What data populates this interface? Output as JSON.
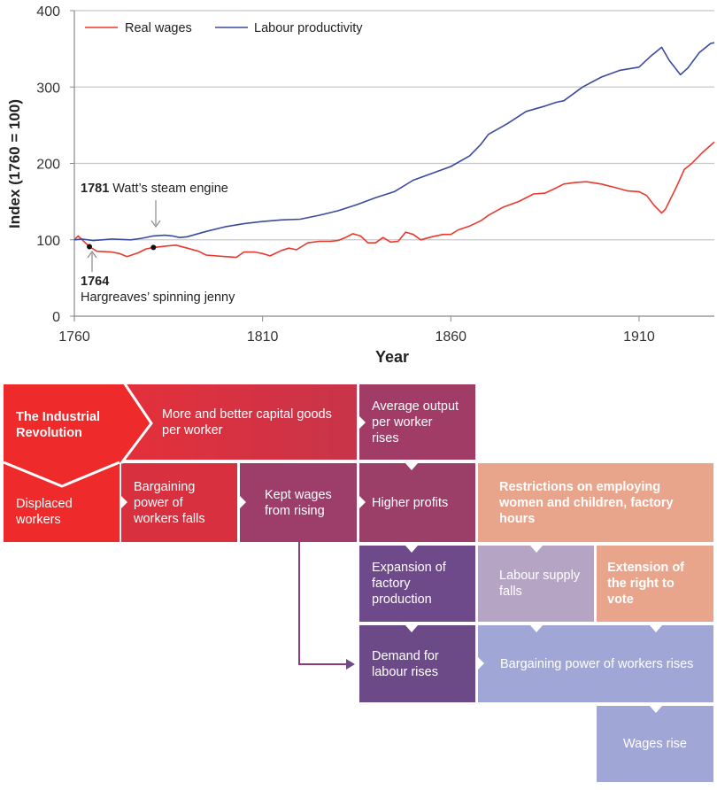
{
  "chart_data": {
    "type": "line",
    "xlabel": "Year",
    "ylabel": "Index (1760 = 100)",
    "xlim": [
      1760,
      1930
    ],
    "ylim": [
      0,
      400
    ],
    "xticks": [
      "1760",
      "1810",
      "1860",
      "1910"
    ],
    "yticks": [
      "0",
      "100",
      "200",
      "300",
      "400"
    ],
    "grid": "horizontal",
    "legend_placement": "top-left",
    "series": [
      {
        "name": "Real wages",
        "color": "#e8392d",
        "points": [
          [
            1760,
            100
          ],
          [
            1761,
            105
          ],
          [
            1764,
            91
          ],
          [
            1766,
            85
          ],
          [
            1770,
            84
          ],
          [
            1772,
            82
          ],
          [
            1774,
            78
          ],
          [
            1777,
            83
          ],
          [
            1779,
            88
          ],
          [
            1781,
            90
          ],
          [
            1785,
            92
          ],
          [
            1787,
            93
          ],
          [
            1790,
            89
          ],
          [
            1793,
            85
          ],
          [
            1795,
            80
          ],
          [
            1800,
            78
          ],
          [
            1803,
            77
          ],
          [
            1805,
            84
          ],
          [
            1808,
            84
          ],
          [
            1810,
            82
          ],
          [
            1812,
            79
          ],
          [
            1815,
            86
          ],
          [
            1817,
            89
          ],
          [
            1819,
            87
          ],
          [
            1822,
            96
          ],
          [
            1825,
            98
          ],
          [
            1828,
            98
          ],
          [
            1830,
            99
          ],
          [
            1832,
            103
          ],
          [
            1834,
            108
          ],
          [
            1836,
            105
          ],
          [
            1838,
            96
          ],
          [
            1840,
            96
          ],
          [
            1842,
            103
          ],
          [
            1844,
            97
          ],
          [
            1846,
            98
          ],
          [
            1848,
            110
          ],
          [
            1850,
            107
          ],
          [
            1852,
            100
          ],
          [
            1855,
            104
          ],
          [
            1858,
            107
          ],
          [
            1860,
            107
          ],
          [
            1862,
            113
          ],
          [
            1865,
            118
          ],
          [
            1868,
            125
          ],
          [
            1870,
            132
          ],
          [
            1874,
            143
          ],
          [
            1878,
            150
          ],
          [
            1882,
            160
          ],
          [
            1885,
            161
          ],
          [
            1888,
            168
          ],
          [
            1890,
            173
          ],
          [
            1893,
            175
          ],
          [
            1896,
            176
          ],
          [
            1900,
            173
          ],
          [
            1904,
            168
          ],
          [
            1907,
            164
          ],
          [
            1910,
            163
          ],
          [
            1912,
            158
          ],
          [
            1914,
            145
          ],
          [
            1916,
            135
          ],
          [
            1917,
            140
          ],
          [
            1920,
            170
          ],
          [
            1922,
            192
          ],
          [
            1924,
            200
          ],
          [
            1927,
            215
          ],
          [
            1930,
            228
          ]
        ]
      },
      {
        "name": "Labour productivity",
        "color": "#3b4a9e",
        "points": [
          [
            1760,
            100
          ],
          [
            1762,
            101
          ],
          [
            1765,
            99
          ],
          [
            1770,
            101
          ],
          [
            1775,
            100
          ],
          [
            1778,
            102
          ],
          [
            1781,
            105
          ],
          [
            1784,
            106
          ],
          [
            1786,
            105
          ],
          [
            1788,
            103
          ],
          [
            1790,
            104
          ],
          [
            1795,
            111
          ],
          [
            1800,
            117
          ],
          [
            1805,
            121
          ],
          [
            1810,
            124
          ],
          [
            1815,
            126
          ],
          [
            1820,
            127
          ],
          [
            1825,
            132
          ],
          [
            1830,
            138
          ],
          [
            1835,
            146
          ],
          [
            1840,
            155
          ],
          [
            1845,
            163
          ],
          [
            1850,
            178
          ],
          [
            1855,
            187
          ],
          [
            1860,
            196
          ],
          [
            1865,
            210
          ],
          [
            1868,
            225
          ],
          [
            1870,
            238
          ],
          [
            1875,
            252
          ],
          [
            1880,
            268
          ],
          [
            1885,
            275
          ],
          [
            1888,
            280
          ],
          [
            1890,
            282
          ],
          [
            1895,
            300
          ],
          [
            1900,
            313
          ],
          [
            1905,
            322
          ],
          [
            1910,
            326
          ],
          [
            1913,
            340
          ],
          [
            1916,
            352
          ],
          [
            1918,
            335
          ],
          [
            1921,
            316
          ],
          [
            1923,
            325
          ],
          [
            1926,
            345
          ],
          [
            1929,
            357
          ],
          [
            1930,
            358
          ]
        ]
      }
    ],
    "annotations": [
      {
        "year_label": "1781",
        "text": "Watt’s steam engine",
        "year": 1781,
        "value": 90
      },
      {
        "year_label": "1764",
        "text": "Hargreaves’ spinning jenny",
        "year": 1764,
        "value": 91
      }
    ]
  },
  "diagram": {
    "industrial_revolution": "The Industrial Revolution",
    "capital_goods": "More and better capital goods per worker",
    "average_output": "Average output per worker rises",
    "displaced": "Displaced workers",
    "bargaining_falls": "Bargaining power of workers falls",
    "kept_wages": "Kept wages from rising",
    "higher_profits": "Higher profits",
    "restrictions": "Restrictions on employing women and children, factory hours",
    "expansion": "Expansion of factory production",
    "labour_supply": "Labour supply falls",
    "extension": "Extension of the right to vote",
    "demand": "Demand for labour rises",
    "bargaining_rises": "Bargaining power of workers rises",
    "wages_rise": "Wages rise",
    "colors": {
      "red": "#ee2a2a",
      "crimson": "#c8344a",
      "plum": "#9c3d68",
      "purple": "#6e4a88",
      "salmon": "#e9a58b",
      "lilac": "#b6a4c4",
      "periwinkle": "#a0a6d6"
    }
  }
}
